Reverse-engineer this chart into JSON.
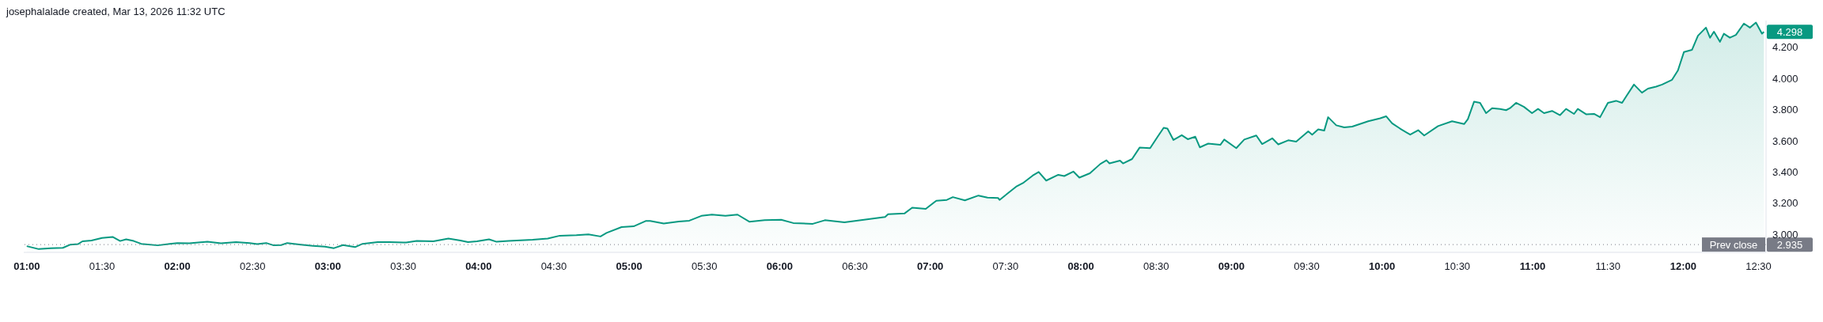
{
  "chart_data": {
    "type": "area",
    "annotations": [
      "josephalalade created, Mar 13, 2026 11:32 UTC",
      "4.298",
      "2.935"
    ],
    "x": [
      1.0,
      1.08,
      1.16,
      1.24,
      1.29,
      1.34,
      1.37,
      1.43,
      1.5,
      1.57,
      1.62,
      1.66,
      1.71,
      1.76,
      1.87,
      1.95,
      2.0,
      2.08,
      2.2,
      2.29,
      2.39,
      2.48,
      2.53,
      2.59,
      2.64,
      2.69,
      2.73,
      2.82,
      2.9,
      2.98,
      3.04,
      3.1,
      3.18,
      3.23,
      3.33,
      3.41,
      3.52,
      3.59,
      3.7,
      3.8,
      3.88,
      3.93,
      3.99,
      4.07,
      4.12,
      4.2,
      4.36,
      4.46,
      4.54,
      4.65,
      4.73,
      4.81,
      4.85,
      4.95,
      5.03,
      5.11,
      5.14,
      5.23,
      5.33,
      5.4,
      5.48,
      5.55,
      5.64,
      5.72,
      5.8,
      5.9,
      6.01,
      6.09,
      6.22,
      6.3,
      6.43,
      6.54,
      6.7,
      6.72,
      6.83,
      6.88,
      6.97,
      7.04,
      7.11,
      7.15,
      7.23,
      7.32,
      7.38,
      7.45,
      7.46,
      7.57,
      7.62,
      7.68,
      7.72,
      7.77,
      7.85,
      7.89,
      7.95,
      7.99,
      8.06,
      8.13,
      8.17,
      8.19,
      8.26,
      8.28,
      8.34,
      8.39,
      8.46,
      8.51,
      8.55,
      8.575,
      8.615,
      8.67,
      8.71,
      8.76,
      8.79,
      8.846,
      8.926,
      8.952,
      9.032,
      9.085,
      9.165,
      9.204,
      9.271,
      9.311,
      9.377,
      9.43,
      9.51,
      9.536,
      9.576,
      9.616,
      9.642,
      9.696,
      9.749,
      9.802,
      9.908,
      9.988,
      10.027,
      10.067,
      10.12,
      10.187,
      10.24,
      10.28,
      10.372,
      10.465,
      10.545,
      10.57,
      10.611,
      10.651,
      10.691,
      10.731,
      10.784,
      10.824,
      10.85,
      10.89,
      10.943,
      10.996,
      11.036,
      11.076,
      11.129,
      11.182,
      11.222,
      11.275,
      11.3,
      11.355,
      11.408,
      11.448,
      11.5,
      11.554,
      11.594,
      11.62,
      11.673,
      11.726,
      11.766,
      11.82,
      11.86,
      11.926,
      11.965,
      12.005,
      12.058,
      12.098,
      12.151,
      12.178,
      12.204,
      12.244,
      12.27,
      12.31,
      12.35,
      12.403,
      12.443,
      12.483,
      12.523,
      12.536
    ],
    "series": [
      {
        "color": "#089981",
        "values": [
          2.925,
          2.906,
          2.912,
          2.914,
          2.935,
          2.938,
          2.956,
          2.961,
          2.977,
          2.984,
          2.958,
          2.969,
          2.958,
          2.94,
          2.93,
          2.94,
          2.945,
          2.943,
          2.953,
          2.943,
          2.951,
          2.945,
          2.938,
          2.945,
          2.93,
          2.932,
          2.945,
          2.935,
          2.927,
          2.922,
          2.912,
          2.932,
          2.919,
          2.94,
          2.951,
          2.951,
          2.948,
          2.958,
          2.956,
          2.974,
          2.961,
          2.951,
          2.956,
          2.969,
          2.953,
          2.958,
          2.966,
          2.974,
          2.992,
          2.995,
          3.0,
          2.987,
          3.01,
          3.047,
          3.052,
          3.086,
          3.086,
          3.07,
          3.083,
          3.088,
          3.119,
          3.127,
          3.119,
          3.127,
          3.081,
          3.091,
          3.094,
          3.073,
          3.068,
          3.091,
          3.078,
          3.091,
          3.112,
          3.13,
          3.135,
          3.171,
          3.164,
          3.216,
          3.221,
          3.239,
          3.218,
          3.249,
          3.236,
          3.234,
          3.221,
          3.306,
          3.332,
          3.377,
          3.4,
          3.345,
          3.382,
          3.374,
          3.403,
          3.364,
          3.392,
          3.452,
          3.475,
          3.455,
          3.473,
          3.455,
          3.483,
          3.556,
          3.553,
          3.626,
          3.683,
          3.678,
          3.605,
          3.636,
          3.61,
          3.626,
          3.558,
          3.582,
          3.574,
          3.608,
          3.553,
          3.608,
          3.634,
          3.579,
          3.616,
          3.577,
          3.603,
          3.595,
          3.66,
          3.639,
          3.673,
          3.665,
          3.751,
          3.699,
          3.686,
          3.691,
          3.725,
          3.744,
          3.757,
          3.712,
          3.678,
          3.639,
          3.668,
          3.634,
          3.694,
          3.725,
          3.707,
          3.738,
          3.85,
          3.843,
          3.777,
          3.809,
          3.804,
          3.796,
          3.809,
          3.843,
          3.817,
          3.777,
          3.804,
          3.777,
          3.791,
          3.764,
          3.804,
          3.772,
          3.804,
          3.77,
          3.772,
          3.751,
          3.843,
          3.856,
          3.843,
          3.882,
          3.96,
          3.908,
          3.934,
          3.947,
          3.96,
          3.991,
          4.051,
          4.169,
          4.182,
          4.273,
          4.325,
          4.26,
          4.299,
          4.234,
          4.286,
          4.26,
          4.278,
          4.351,
          4.325,
          4.357,
          4.286,
          4.298
        ]
      }
    ],
    "xlim": [
      0.98,
      12.55
    ],
    "xticks": [
      {
        "value": 1,
        "label": "01:00"
      },
      {
        "value": 1.5,
        "label": "01:30"
      },
      {
        "value": 2,
        "label": "02:00"
      },
      {
        "value": 2.5,
        "label": "02:30"
      },
      {
        "value": 3,
        "label": "03:00"
      },
      {
        "value": 3.5,
        "label": "03:30"
      },
      {
        "value": 4,
        "label": "04:00"
      },
      {
        "value": 4.5,
        "label": "04:30"
      },
      {
        "value": 5,
        "label": "05:00"
      },
      {
        "value": 5.5,
        "label": "05:30"
      },
      {
        "value": 6,
        "label": "06:00"
      },
      {
        "value": 6.5,
        "label": "06:30"
      },
      {
        "value": 7,
        "label": "07:00"
      },
      {
        "value": 7.5,
        "label": "07:30"
      },
      {
        "value": 8,
        "label": "08:00"
      },
      {
        "value": 8.5,
        "label": "08:30"
      },
      {
        "value": 9,
        "label": "09:00"
      },
      {
        "value": 9.5,
        "label": "09:30"
      },
      {
        "value": 10,
        "label": "10:00"
      },
      {
        "value": 10.5,
        "label": "10:30"
      },
      {
        "value": 11,
        "label": "11:00"
      },
      {
        "value": 11.5,
        "label": "11:30"
      },
      {
        "value": 12,
        "label": "12:00"
      },
      {
        "value": 12.5,
        "label": "12:30"
      }
    ],
    "ylim": [
      2.885,
      4.37
    ],
    "yticks": [
      {
        "value": 3,
        "label": "3.000"
      },
      {
        "value": 3.2,
        "label": "3.200"
      },
      {
        "value": 3.4,
        "label": "3.400"
      },
      {
        "value": 3.6,
        "label": "3.600"
      },
      {
        "value": 3.8,
        "label": "3.800"
      },
      {
        "value": 4,
        "label": "4.000"
      },
      {
        "value": 4.2,
        "label": "4.200"
      }
    ],
    "ref_lines": [
      {
        "axis": "y",
        "value": 2.935,
        "label": "Prev close",
        "color": "#787b86",
        "line_style": "dotted"
      }
    ]
  }
}
